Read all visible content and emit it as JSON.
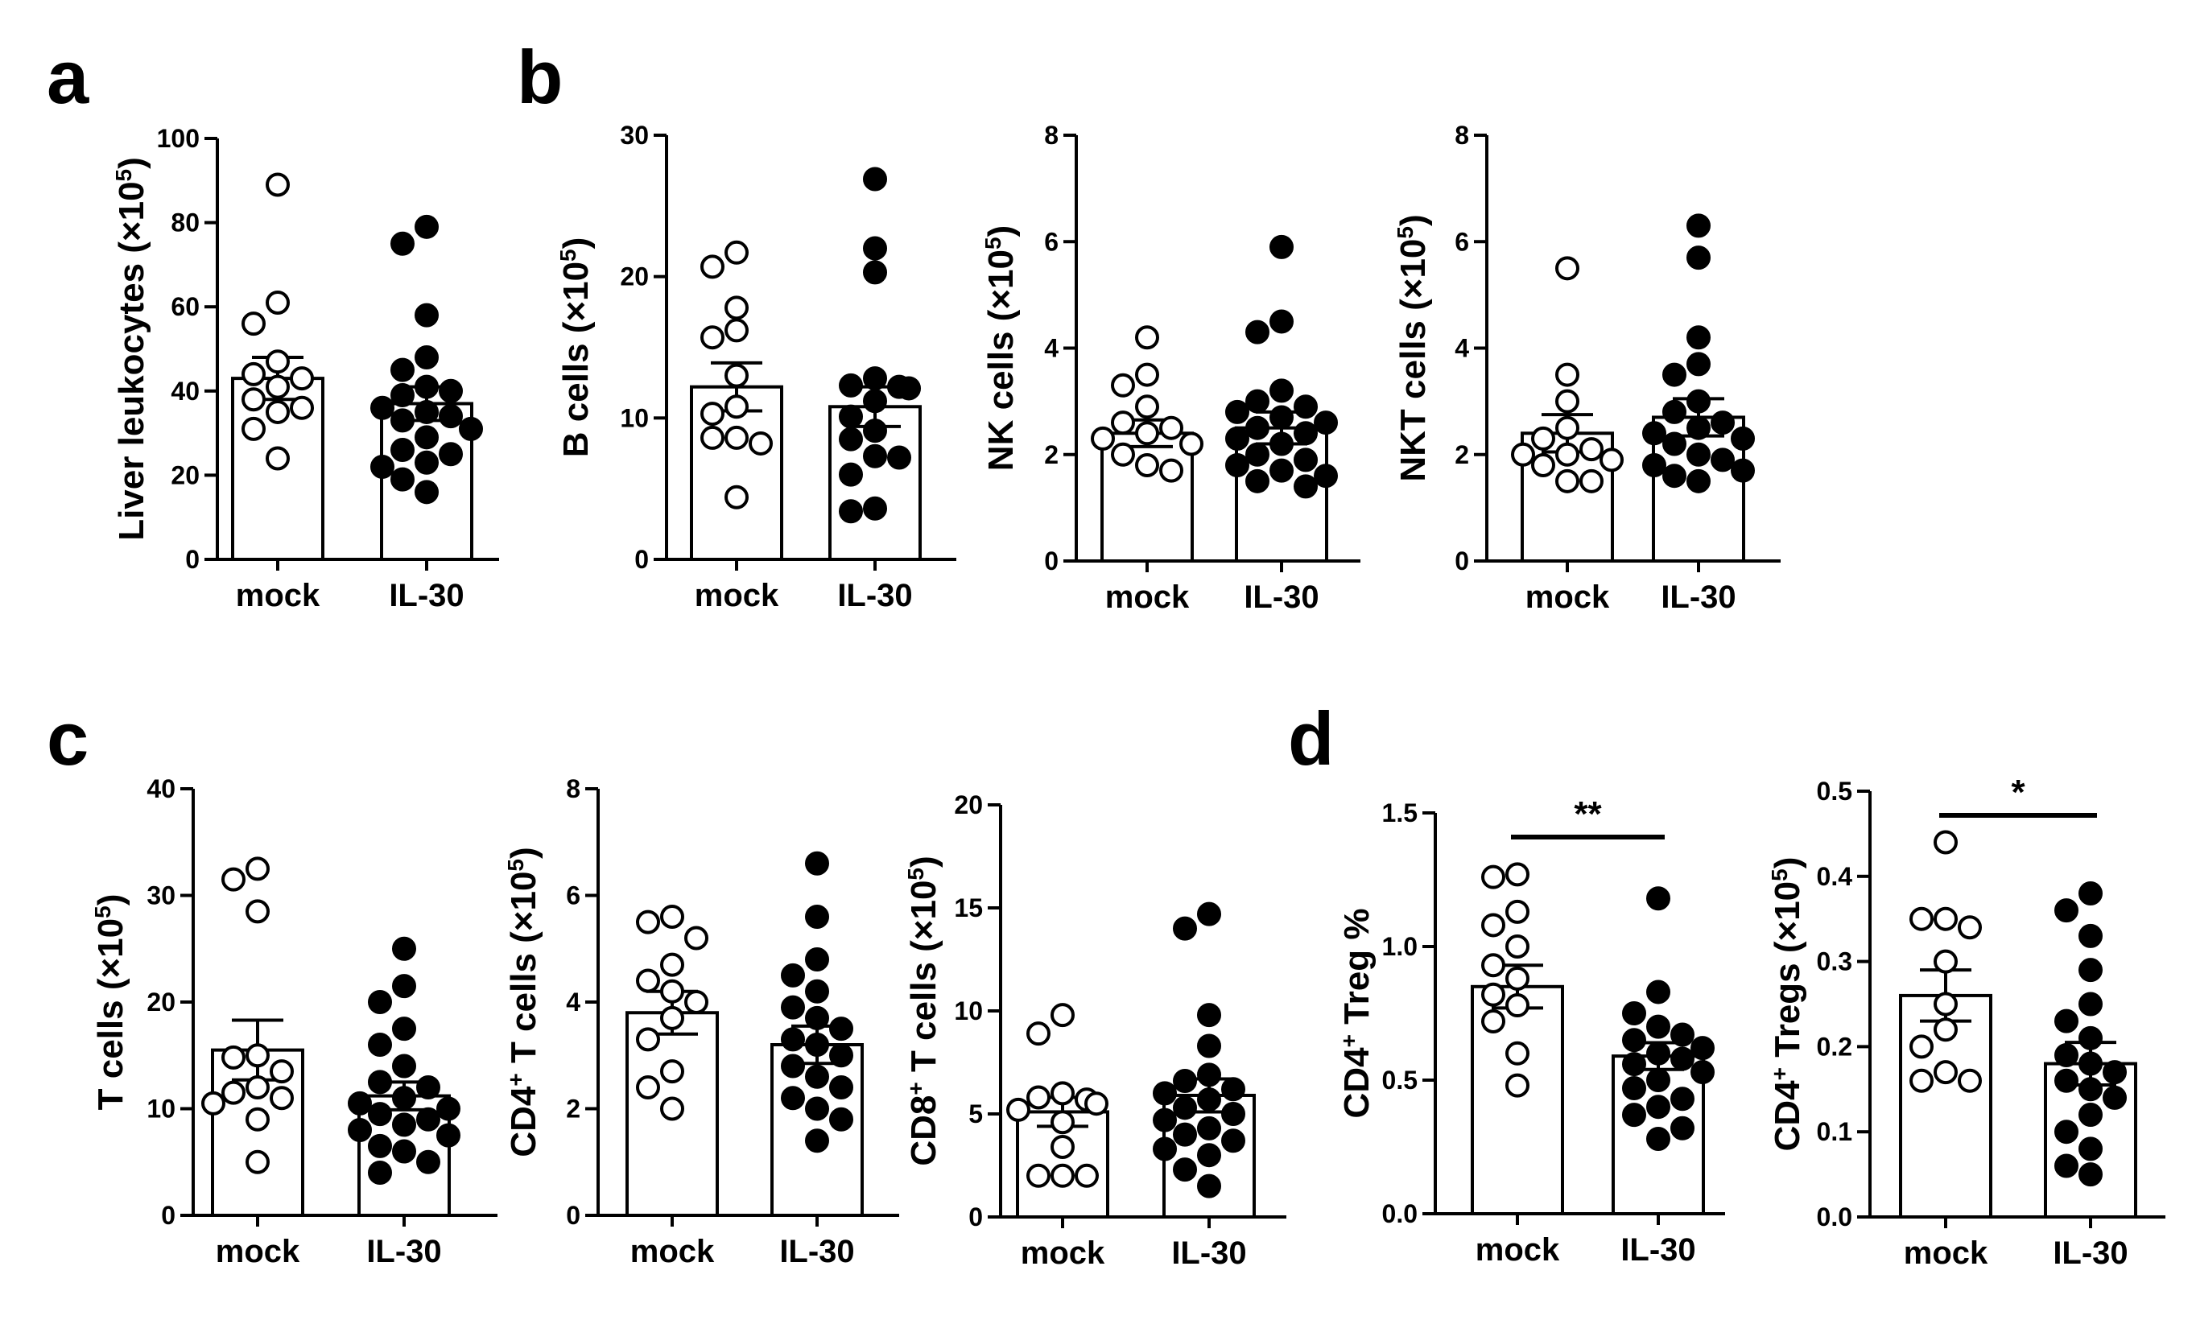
{
  "panel_letters": [
    "a",
    "b",
    "c",
    "d"
  ],
  "chart_data": [
    {
      "type": "bar",
      "panel": "a",
      "categories": [
        "mock",
        "IL-30"
      ],
      "ylabel": "Liver leukocytes (×10^5)",
      "ylim": [
        0,
        100
      ],
      "yticks": [
        0,
        20,
        40,
        60,
        80,
        100
      ],
      "bars": [
        {
          "name": "mock",
          "mean": 43,
          "sem": 5,
          "points": [
            89,
            61,
            56,
            47,
            44,
            43,
            41,
            38,
            36,
            35,
            31,
            24
          ]
        },
        {
          "name": "IL-30",
          "mean": 37,
          "sem": 4,
          "points": [
            79,
            75,
            58,
            48,
            45,
            41,
            40,
            39,
            36,
            35,
            34,
            33,
            31,
            29,
            26,
            25,
            23,
            22,
            19,
            16
          ]
        }
      ]
    },
    {
      "type": "bar",
      "panel": "b",
      "categories": [
        "mock",
        "IL-30"
      ],
      "ylabel": "B cells (×10^5)",
      "ylim": [
        0,
        30
      ],
      "yticks": [
        0,
        10,
        20,
        30
      ],
      "bars": [
        {
          "name": "mock",
          "mean": 12.2,
          "sem": 1.7,
          "points": [
            21.7,
            20.7,
            17.8,
            16.2,
            15.7,
            13.0,
            10.8,
            10.3,
            8.6,
            8.6,
            8.2,
            4.4
          ]
        },
        {
          "name": "IL-30",
          "mean": 10.8,
          "sem": 1.4,
          "points": [
            26.9,
            22.0,
            20.3,
            12.8,
            12.3,
            12.2,
            12.1,
            11.2,
            10.1,
            9.1,
            8.5,
            7.3,
            7.2,
            6.0,
            3.6,
            3.4
          ]
        }
      ]
    },
    {
      "type": "bar",
      "panel": "b",
      "categories": [
        "mock",
        "IL-30"
      ],
      "ylabel": "NK cells (×10^5)",
      "ylim": [
        0,
        8
      ],
      "yticks": [
        0,
        2,
        4,
        6,
        8
      ],
      "bars": [
        {
          "name": "mock",
          "mean": 2.4,
          "sem": 0.25,
          "points": [
            4.2,
            3.5,
            3.3,
            2.9,
            2.6,
            2.5,
            2.4,
            2.3,
            2.2,
            2.0,
            1.8,
            1.7
          ]
        },
        {
          "name": "IL-30",
          "mean": 2.5,
          "sem": 0.3,
          "points": [
            5.9,
            4.5,
            4.3,
            3.2,
            3.0,
            2.9,
            2.8,
            2.7,
            2.6,
            2.5,
            2.4,
            2.3,
            2.2,
            2.0,
            1.9,
            1.8,
            1.7,
            1.6,
            1.5,
            1.4
          ]
        }
      ]
    },
    {
      "type": "bar",
      "panel": "b",
      "categories": [
        "mock",
        "IL-30"
      ],
      "ylabel": "NKT cells (×10^5)",
      "ylim": [
        0,
        8
      ],
      "yticks": [
        0,
        2,
        4,
        6,
        8
      ],
      "bars": [
        {
          "name": "mock",
          "mean": 2.4,
          "sem": 0.35,
          "points": [
            5.5,
            3.5,
            3.0,
            2.5,
            2.3,
            2.1,
            2.0,
            2.0,
            1.9,
            1.8,
            1.5,
            1.5
          ]
        },
        {
          "name": "IL-30",
          "mean": 2.7,
          "sem": 0.35,
          "points": [
            6.3,
            5.7,
            4.2,
            3.7,
            3.5,
            3.0,
            2.8,
            2.6,
            2.5,
            2.4,
            2.3,
            2.2,
            2.0,
            1.9,
            1.8,
            1.7,
            1.6,
            1.5
          ]
        }
      ]
    },
    {
      "type": "bar",
      "panel": "c",
      "categories": [
        "mock",
        "IL-30"
      ],
      "ylabel": "T cells (×10^5)",
      "ylim": [
        0,
        40
      ],
      "yticks": [
        0,
        10,
        20,
        30,
        40
      ],
      "bars": [
        {
          "name": "mock",
          "mean": 15.5,
          "sem": 2.8,
          "points": [
            32.5,
            31.5,
            28.5,
            15.0,
            14.8,
            13.5,
            12.0,
            11.5,
            11.0,
            10.5,
            9.0,
            5.0
          ]
        },
        {
          "name": "IL-30",
          "mean": 11.2,
          "sem": 1.3,
          "points": [
            25.0,
            21.5,
            20.0,
            17.5,
            16.0,
            14.0,
            12.5,
            12.0,
            11.0,
            10.5,
            10.0,
            9.5,
            9.0,
            8.5,
            8.0,
            7.5,
            6.5,
            6.0,
            5.0,
            4.0
          ]
        }
      ]
    },
    {
      "type": "bar",
      "panel": "c",
      "categories": [
        "mock",
        "IL-30"
      ],
      "ylabel": "CD4+ T cells (×10^5)",
      "ylim": [
        0,
        8
      ],
      "yticks": [
        0,
        2,
        4,
        6,
        8
      ],
      "bars": [
        {
          "name": "mock",
          "mean": 3.8,
          "sem": 0.4,
          "points": [
            5.6,
            5.5,
            5.2,
            4.7,
            4.4,
            4.2,
            4.0,
            3.7,
            3.3,
            2.7,
            2.4,
            2.0
          ]
        },
        {
          "name": "IL-30",
          "mean": 3.2,
          "sem": 0.35,
          "points": [
            6.6,
            5.6,
            4.8,
            4.5,
            4.2,
            3.9,
            3.7,
            3.5,
            3.3,
            3.2,
            3.0,
            2.8,
            2.6,
            2.4,
            2.2,
            2.0,
            1.8,
            1.4
          ]
        }
      ]
    },
    {
      "type": "bar",
      "panel": "c",
      "categories": [
        "mock",
        "IL-30"
      ],
      "ylabel": "CD8+ T cells (×10^5)",
      "ylim": [
        0,
        20
      ],
      "yticks": [
        0,
        5,
        10,
        15,
        20
      ],
      "bars": [
        {
          "name": "mock",
          "mean": 5.1,
          "sem": 0.7,
          "points": [
            9.8,
            8.9,
            6.0,
            5.8,
            5.7,
            5.5,
            5.2,
            4.6,
            3.4,
            2.0,
            2.0,
            2.0
          ]
        },
        {
          "name": "IL-30",
          "mean": 5.9,
          "sem": 0.8,
          "points": [
            14.7,
            14.0,
            9.8,
            8.3,
            6.9,
            6.6,
            6.2,
            6.0,
            5.7,
            5.3,
            5.0,
            4.7,
            4.3,
            4.0,
            3.7,
            3.3,
            3.0,
            2.3,
            1.5
          ]
        }
      ]
    },
    {
      "type": "bar",
      "panel": "d",
      "categories": [
        "mock",
        "IL-30"
      ],
      "ylabel": "CD4+ Treg %",
      "ylim": [
        0,
        1.5
      ],
      "yticks": [
        "0.0",
        "0.5",
        "1.0",
        "1.5"
      ],
      "significance": "**",
      "bars": [
        {
          "name": "mock",
          "mean": 0.85,
          "sem": 0.08,
          "points": [
            1.27,
            1.26,
            1.13,
            1.08,
            1.0,
            0.93,
            0.88,
            0.82,
            0.78,
            0.72,
            0.6,
            0.48
          ]
        },
        {
          "name": "IL-30",
          "mean": 0.59,
          "sem": 0.05,
          "points": [
            1.18,
            0.83,
            0.75,
            0.7,
            0.67,
            0.65,
            0.62,
            0.6,
            0.58,
            0.56,
            0.53,
            0.5,
            0.47,
            0.43,
            0.4,
            0.37,
            0.32,
            0.28
          ]
        }
      ]
    },
    {
      "type": "bar",
      "panel": "d",
      "categories": [
        "mock",
        "IL-30"
      ],
      "ylabel": "CD4+ Tregs (×10^5)",
      "ylim": [
        0,
        0.5
      ],
      "yticks": [
        "0.0",
        "0.1",
        "0.2",
        "0.3",
        "0.4",
        "0.5"
      ],
      "significance": "*",
      "bars": [
        {
          "name": "mock",
          "mean": 0.26,
          "sem": 0.03,
          "points": [
            0.44,
            0.35,
            0.35,
            0.34,
            0.3,
            0.25,
            0.22,
            0.2,
            0.17,
            0.16,
            0.16
          ]
        },
        {
          "name": "IL-30",
          "mean": 0.18,
          "sem": 0.025,
          "points": [
            0.38,
            0.36,
            0.33,
            0.29,
            0.25,
            0.23,
            0.21,
            0.19,
            0.18,
            0.17,
            0.16,
            0.15,
            0.14,
            0.12,
            0.1,
            0.08,
            0.06,
            0.05
          ]
        }
      ]
    }
  ]
}
